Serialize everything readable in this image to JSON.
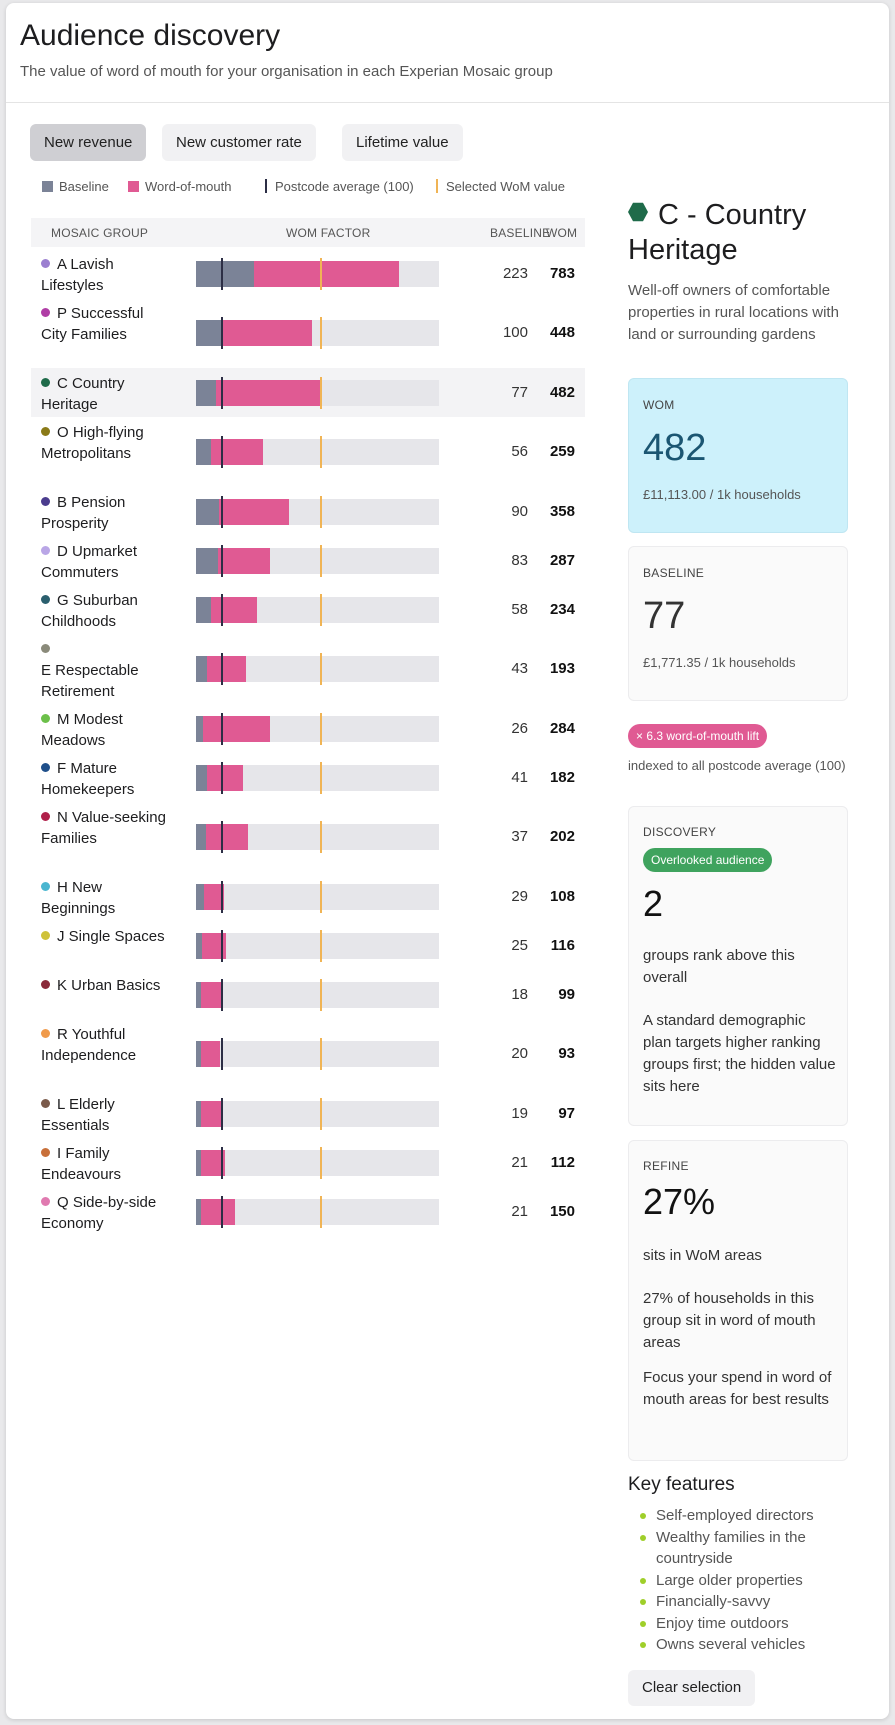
{
  "header": {
    "title": "Audience discovery",
    "subtitle": "The value of word of mouth for your organisation in each Experian Mosaic group"
  },
  "tabs": [
    {
      "label": "New revenue",
      "active": true
    },
    {
      "label": "New customer rate",
      "active": false
    },
    {
      "label": "Lifetime value",
      "active": false
    }
  ],
  "legend": {
    "baseline": "Baseline",
    "wom": "Word-of-mouth",
    "postcode_avg": "Postcode average (100)",
    "selected": "Selected WoM value"
  },
  "colors": {
    "baseline": "#7b8397",
    "wom": "#e05a93",
    "postcode_avg": "#2c2e45",
    "selected": "#f0b455",
    "track": "#e6e6ea",
    "wom_card": "#cdf1fb",
    "overlooked": "#3fa35e",
    "bullet": "#9fcf2a"
  },
  "table": {
    "headers": {
      "group": "MOSAIC GROUP",
      "factor": "WOM FACTOR",
      "baseline": "BASELINE",
      "wom": "WOM"
    },
    "scale_max": 938,
    "postcode_average": 100,
    "selected_wom": 482,
    "rows": [
      {
        "name": "A Lavish Lifestyles",
        "baseline": 223,
        "wom": 783,
        "color": "#9b7fd0"
      },
      {
        "name": "P Successful City Families",
        "baseline": 100,
        "wom": 448,
        "color": "#b03ea6"
      },
      {
        "name": "C Country Heritage",
        "baseline": 77,
        "wom": 482,
        "color": "#1f6b4a",
        "selected": true
      },
      {
        "name": "O High-flying Metropolitans",
        "baseline": 56,
        "wom": 259,
        "color": "#8a7a18"
      },
      {
        "name": "B Pension Prosperity",
        "baseline": 90,
        "wom": 358,
        "color": "#4b3c8e"
      },
      {
        "name": "D Upmarket Commuters",
        "baseline": 83,
        "wom": 287,
        "color": "#b9a6e6"
      },
      {
        "name": "G Suburban Childhoods",
        "baseline": 58,
        "wom": 234,
        "color": "#2b5f6e"
      },
      {
        "name": "E Respectable Retirement",
        "baseline": 43,
        "wom": 193,
        "color": "#8a8a7a"
      },
      {
        "name": "M Modest Meadows",
        "baseline": 26,
        "wom": 284,
        "color": "#6cc04a"
      },
      {
        "name": "F Mature Homekeepers",
        "baseline": 41,
        "wom": 182,
        "color": "#1f4f8a"
      },
      {
        "name": "N Value-seeking Families",
        "baseline": 37,
        "wom": 202,
        "color": "#b0204a"
      },
      {
        "name": "H New Beginnings",
        "baseline": 29,
        "wom": 108,
        "color": "#4ab6d0"
      },
      {
        "name": "J Single Spaces",
        "baseline": 25,
        "wom": 116,
        "color": "#cfc23a"
      },
      {
        "name": "K Urban Basics",
        "baseline": 18,
        "wom": 99,
        "color": "#8a2a3a"
      },
      {
        "name": "R Youthful Independence",
        "baseline": 20,
        "wom": 93,
        "color": "#f09a4a"
      },
      {
        "name": "L Elderly Essentials",
        "baseline": 19,
        "wom": 97,
        "color": "#7a5a4a"
      },
      {
        "name": "I Family Endeavours",
        "baseline": 21,
        "wom": 112,
        "color": "#c8703a"
      },
      {
        "name": "Q Side-by-side Economy",
        "baseline": 21,
        "wom": 150,
        "color": "#e07ab0"
      }
    ]
  },
  "selection": {
    "title": "C - Country Heritage",
    "description": "Well-off owners of comfortable properties in rural locations with land or surrounding gardens",
    "wom": {
      "label": "WOM",
      "value": "482",
      "sub": "£11,113.00 / 1k households"
    },
    "baseline": {
      "label": "BASELINE",
      "value": "77",
      "sub": "£1,771.35 / 1k households"
    },
    "lift_badge": "× 6.3 word-of-mouth lift",
    "lift_note": "indexed to all postcode average (100)",
    "discovery": {
      "label": "DISCOVERY",
      "badge": "Overlooked audience",
      "value": "2",
      "caption": "groups rank above this overall",
      "text": "A standard demographic plan targets higher ranking groups first; the hidden value sits here"
    },
    "refine": {
      "label": "REFINE",
      "value": "27%",
      "caption": "sits in WoM areas",
      "text1": "27% of households in this group sit in word of mouth areas",
      "text2": "Focus your spend in word of mouth areas for best results"
    },
    "key_features_title": "Key features",
    "key_features": [
      "Self-employed directors",
      "Wealthy families in the countryside",
      "Large older properties",
      "Financially-savvy",
      "Enjoy time outdoors",
      "Owns several vehicles"
    ],
    "clear_label": "Clear selection"
  }
}
